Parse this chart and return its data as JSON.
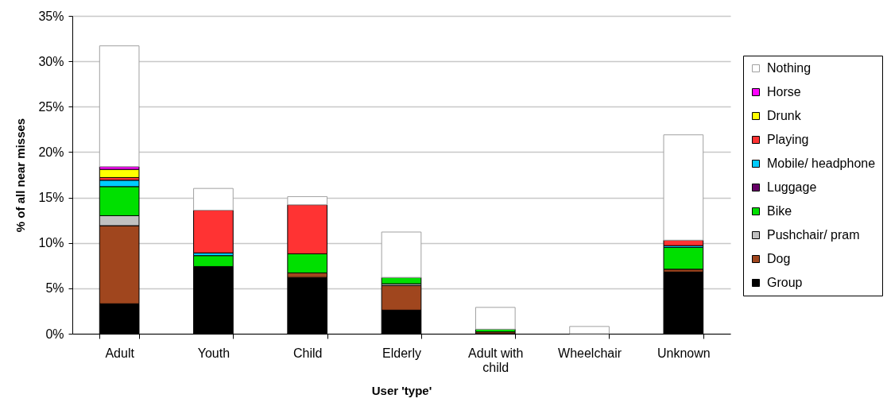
{
  "chart_data": {
    "type": "bar",
    "stacked": true,
    "xlabel": "User 'type'",
    "ylabel": "% of all near misses",
    "categories": [
      "Adult",
      "Youth",
      "Child",
      "Elderly",
      "Adult with child",
      "Wheelchair",
      "Unknown"
    ],
    "series": [
      {
        "name": "Group",
        "color": "#000000",
        "values": [
          3.3,
          7.4,
          6.2,
          2.6,
          null,
          null,
          6.8
        ]
      },
      {
        "name": "Dog",
        "color": "#a0461e",
        "values": [
          8.6,
          null,
          0.5,
          2.7,
          0.2,
          null,
          0.3
        ]
      },
      {
        "name": "Pushchair/ pram",
        "color": "#c0c0c0",
        "values": [
          1.1,
          null,
          null,
          0.2,
          null,
          null,
          null
        ]
      },
      {
        "name": "Bike",
        "color": "#00e000",
        "values": [
          3.2,
          1.2,
          2.1,
          0.7,
          0.3,
          null,
          2.4
        ]
      },
      {
        "name": "Luggage",
        "color": "#660066",
        "values": [
          null,
          null,
          null,
          null,
          null,
          null,
          null
        ]
      },
      {
        "name": "Mobile/ headphone",
        "color": "#00ccff",
        "values": [
          0.7,
          0.3,
          null,
          null,
          null,
          null,
          0.2
        ]
      },
      {
        "name": "Playing",
        "color": "#ff3333",
        "values": [
          0.3,
          4.7,
          5.4,
          null,
          null,
          null,
          0.6
        ]
      },
      {
        "name": "Drunk",
        "color": "#ffff00",
        "values": [
          0.9,
          null,
          null,
          null,
          null,
          null,
          null
        ]
      },
      {
        "name": "Horse",
        "color": "#ff00ff",
        "values": [
          0.3,
          null,
          null,
          null,
          null,
          null,
          null
        ]
      },
      {
        "name": "Nothing",
        "color": "#ffffff",
        "values": [
          13.3,
          2.4,
          0.9,
          5.0,
          2.4,
          0.8,
          11.6
        ]
      }
    ],
    "ylim": [
      0,
      35
    ],
    "yticks": [
      {
        "value": 0,
        "label": "0%"
      },
      {
        "value": 5,
        "label": "5%"
      },
      {
        "value": 10,
        "label": "10%"
      },
      {
        "value": 15,
        "label": "15%"
      },
      {
        "value": 20,
        "label": "20%"
      },
      {
        "value": 25,
        "label": "25%"
      },
      {
        "value": 30,
        "label": "30%"
      },
      {
        "value": 35,
        "label": "35%"
      }
    ],
    "grid": "y",
    "legend": "right"
  }
}
